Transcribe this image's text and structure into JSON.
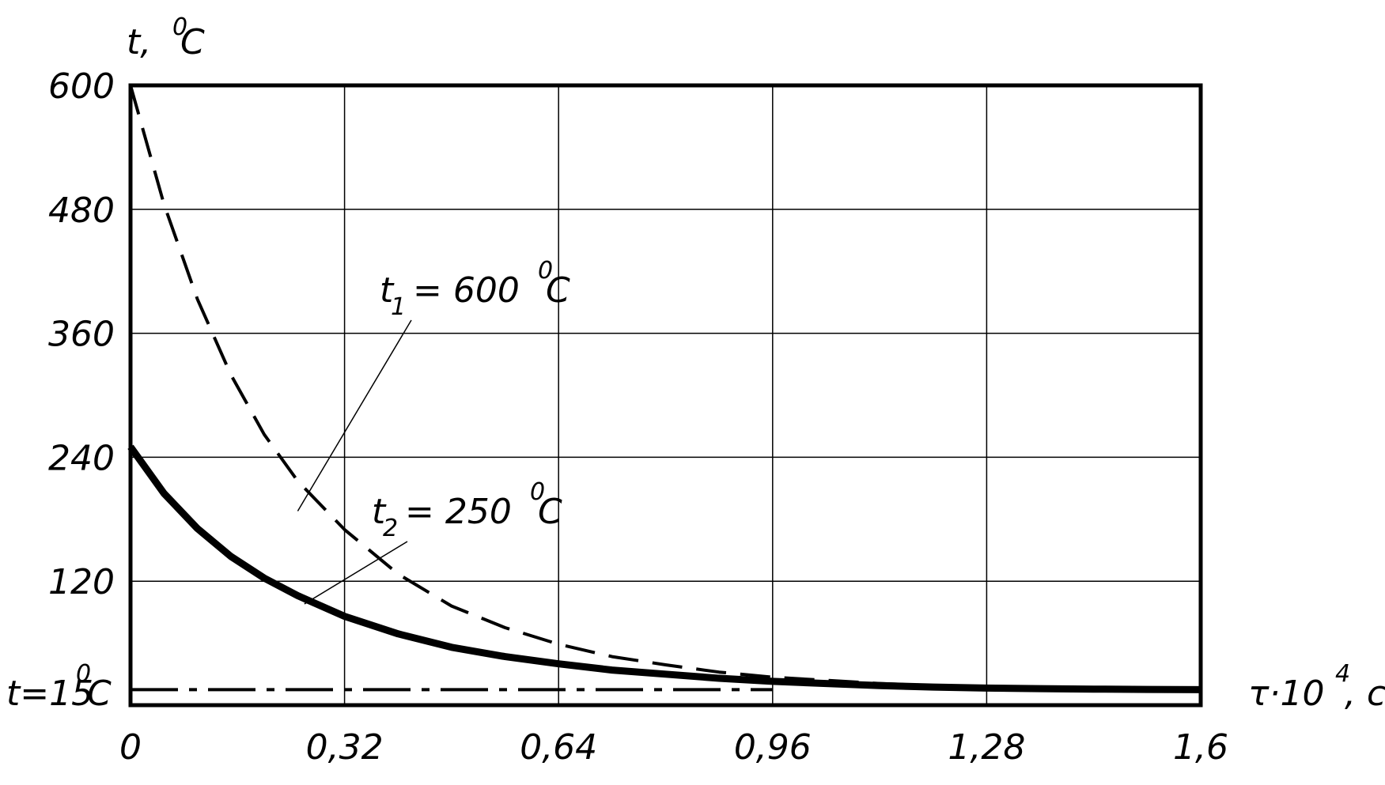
{
  "chart_data": {
    "type": "line",
    "title": "",
    "xlabel": "τ·10",
    "xlabel_exponent": "4",
    "xlabel_unit": ", c",
    "ylabel": "t,",
    "ylabel_unit_sup": "0",
    "ylabel_unit": "C",
    "xlim": [
      0,
      1.6
    ],
    "ylim": [
      0,
      600
    ],
    "x_ticks": [
      0,
      0.32,
      0.64,
      0.96,
      1.28,
      1.6
    ],
    "x_tick_labels": [
      "0",
      "0,32",
      "0,64",
      "0,96",
      "1,28",
      "1,6"
    ],
    "y_ticks": [
      120,
      240,
      360,
      480,
      600
    ],
    "y_tick_labels": [
      "120",
      "240",
      "360",
      "480",
      "600"
    ],
    "grid": true,
    "series": [
      {
        "name": "t1 = 600 °C",
        "style": "dashed",
        "x": [
          0,
          0.05,
          0.1,
          0.15,
          0.2,
          0.25,
          0.32,
          0.4,
          0.48,
          0.56,
          0.64,
          0.72,
          0.8,
          0.88,
          0.96,
          1.04,
          1.12,
          1.2,
          1.28,
          1.36,
          1.44,
          1.52,
          1.6
        ],
        "y": [
          600,
          485,
          393,
          320,
          262,
          217,
          170,
          127,
          96,
          75,
          59,
          47,
          39,
          32,
          27,
          24,
          21,
          19,
          18,
          17,
          16,
          15.5,
          15
        ]
      },
      {
        "name": "t2 = 250 °C",
        "style": "solid-thick",
        "x": [
          0,
          0.05,
          0.1,
          0.15,
          0.2,
          0.25,
          0.32,
          0.4,
          0.48,
          0.56,
          0.64,
          0.72,
          0.8,
          0.88,
          0.96,
          1.04,
          1.12,
          1.2,
          1.28,
          1.36,
          1.44,
          1.52,
          1.6
        ],
        "y": [
          250,
          205,
          171,
          144,
          123,
          106,
          86,
          69,
          56,
          47,
          40,
          34,
          30,
          26,
          23,
          21,
          19,
          17.5,
          16.5,
          16,
          15.5,
          15.2,
          15
        ]
      },
      {
        "name": "t=15 °C",
        "style": "dash-dot",
        "x": [
          0,
          0.96
        ],
        "y": [
          15,
          15
        ]
      }
    ],
    "annotations": [
      {
        "id": "t1",
        "base": "t",
        "sub": "1",
        "text": " = 600 ",
        "sup": "0",
        "unit": "C",
        "x": 0.25,
        "y": 140
      },
      {
        "id": "t2",
        "base": "t",
        "sub": "2",
        "text": " = 250 ",
        "sup": "0",
        "unit": "C",
        "x": 0.26,
        "y": 90
      }
    ],
    "baseline_label": {
      "text": "t=15",
      "sup": "0",
      "unit": "C",
      "y": 15
    }
  }
}
